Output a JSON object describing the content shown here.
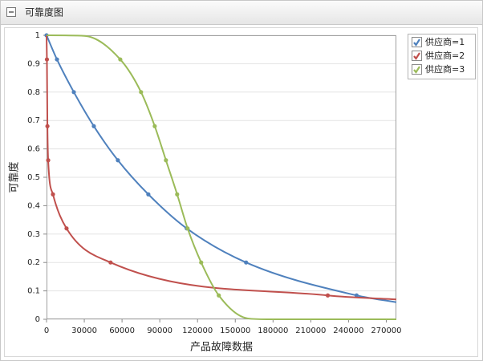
{
  "header": {
    "title": "可靠度图"
  },
  "chart_data": {
    "type": "line",
    "xlabel": "产品故障数据",
    "ylabel": "可靠度",
    "xlim": [
      0,
      278000
    ],
    "ylim": [
      0,
      1
    ],
    "xticks": [
      0,
      30000,
      60000,
      90000,
      120000,
      150000,
      180000,
      210000,
      240000,
      270000
    ],
    "yticks": [
      0,
      0.1,
      0.2,
      0.3,
      0.4,
      0.5,
      0.6,
      0.7,
      0.8,
      0.9,
      1
    ],
    "grid": true,
    "legend": "outside-right",
    "series": [
      {
        "name": "供应商=1",
        "color": "#4f81bd",
        "x": [
          0,
          8300,
          21700,
          37600,
          56700,
          80900,
          111400,
          158600,
          246400,
          278000
        ],
        "values": [
          1,
          0.915,
          0.8,
          0.68,
          0.56,
          0.44,
          0.32,
          0.2,
          0.084,
          0.06
        ],
        "markers": [
          true,
          true,
          true,
          true,
          true,
          true,
          true,
          true,
          true,
          false
        ]
      },
      {
        "name": "供应商=2",
        "color": "#c0504d",
        "x": [
          0,
          300,
          700,
          1300,
          5100,
          15900,
          50900,
          223500,
          278000
        ],
        "values": [
          1,
          0.915,
          0.68,
          0.56,
          0.44,
          0.32,
          0.2,
          0.084,
          0.07
        ],
        "markers": [
          false,
          true,
          true,
          true,
          true,
          true,
          true,
          true,
          false
        ]
      },
      {
        "name": "供应商=3",
        "color": "#9bbb59",
        "x": [
          0,
          30000,
          58600,
          75100,
          86000,
          94900,
          103800,
          112100,
          122900,
          136900,
          160000,
          175000,
          278000
        ],
        "values": [
          1,
          0.998,
          0.915,
          0.8,
          0.68,
          0.56,
          0.44,
          0.32,
          0.2,
          0.084,
          0.003,
          0,
          0
        ],
        "markers": [
          false,
          false,
          true,
          true,
          true,
          true,
          true,
          true,
          true,
          true,
          false,
          false,
          false
        ]
      }
    ]
  }
}
